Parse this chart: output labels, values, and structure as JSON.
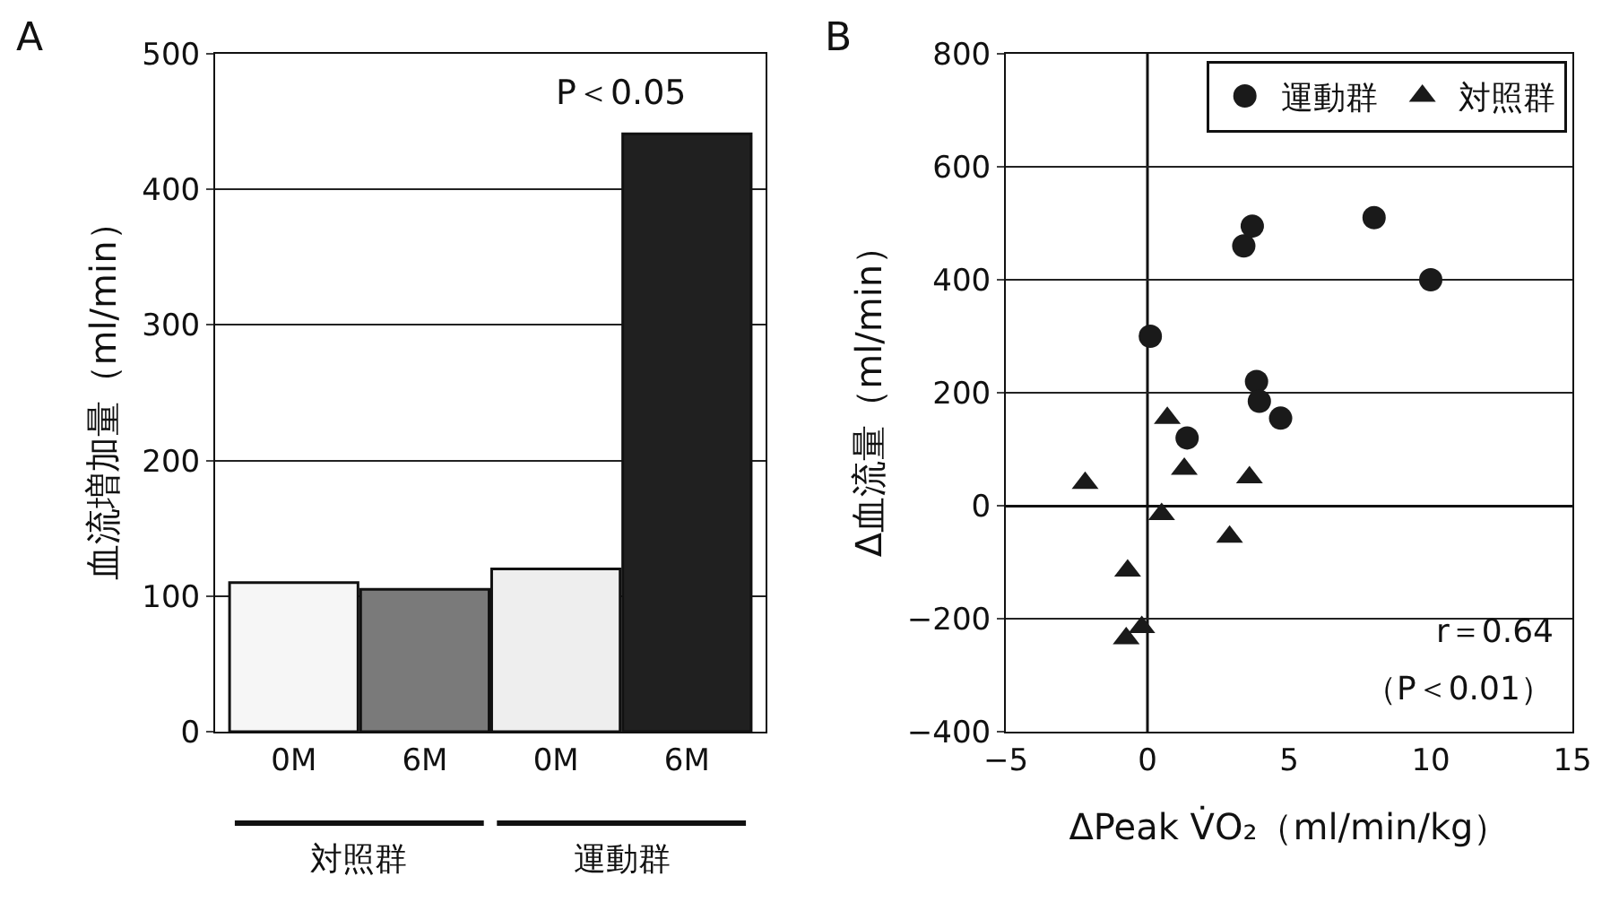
{
  "chart_data": [
    {
      "type": "bar",
      "title": "A",
      "ylabel": "血流増加量（ml/min）",
      "categories": [
        "0M",
        "6M",
        "0M",
        "6M"
      ],
      "values": [
        110,
        105,
        120,
        441
      ],
      "colors": [
        "#f6f6f6",
        "#7a7a7a",
        "#eeeeee",
        "#202020"
      ],
      "ylim": [
        0,
        500
      ],
      "yticks": [
        0,
        100,
        200,
        300,
        400,
        500
      ],
      "grid": "y",
      "annotations": [
        "P＜0.05",
        "対照群",
        "運動群"
      ]
    },
    {
      "type": "scatter",
      "title": "B",
      "xlabel": "ΔPeak V̇O₂（ml/min/kg）",
      "ylabel": "Δ血流量（ml/min）",
      "xlim": [
        -5,
        15
      ],
      "xticks": [
        -5,
        0,
        5,
        10,
        15
      ],
      "ylim": [
        -400,
        800
      ],
      "yticks": [
        -400,
        -200,
        0,
        200,
        400,
        600,
        800
      ],
      "grid": "y",
      "legend": "top right",
      "ref_lines": [
        {
          "axis": "x",
          "value": 0
        }
      ],
      "series": [
        {
          "name": "運動群",
          "color": "#1a1a1a",
          "marker": "circle",
          "x": [
            0.1,
            3.4,
            3.7,
            8,
            10,
            3.85,
            3.95,
            4.7,
            1.4
          ],
          "values": [
            300,
            460,
            495,
            510,
            400,
            220,
            185,
            155,
            120
          ]
        },
        {
          "name": "対照群",
          "color": "#1a1a1a",
          "marker": "triangle",
          "x": [
            -2.2,
            0.7,
            1.3,
            3.6,
            0.5,
            2.9,
            -0.7,
            -0.2,
            -0.75
          ],
          "values": [
            40,
            155,
            65,
            50,
            -15,
            -55,
            -115,
            -215,
            -235
          ]
        }
      ],
      "annotations": [
        "r＝0.64",
        "（P＜0.01）"
      ]
    }
  ]
}
